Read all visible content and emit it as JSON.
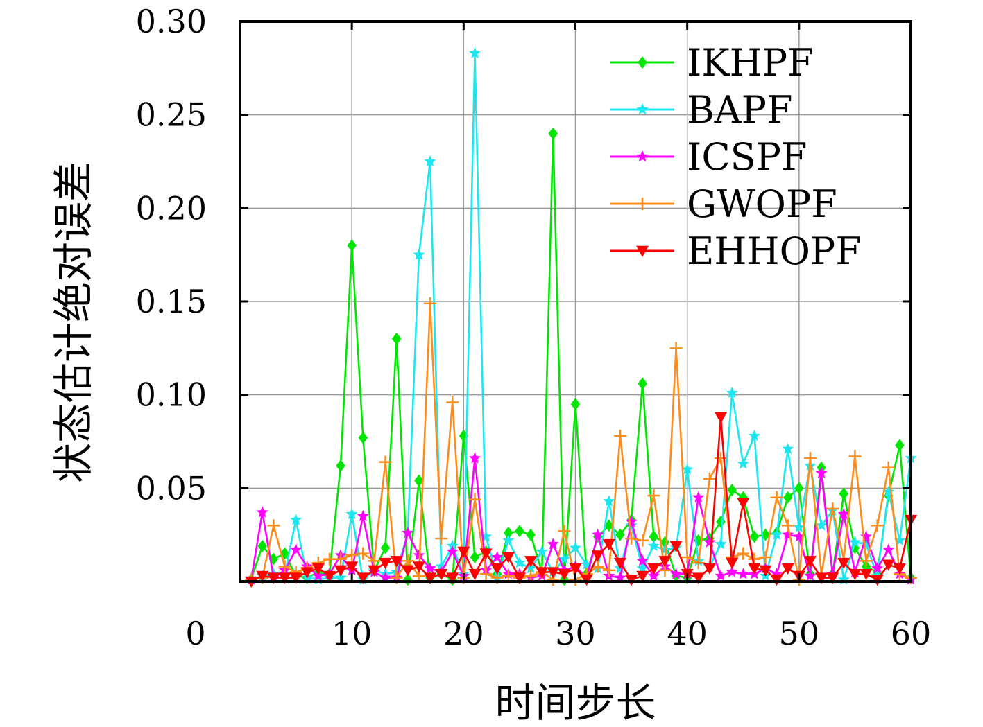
{
  "chart_data": {
    "type": "line",
    "xlabel": "时间步长",
    "ylabel": "状态估计绝对误差",
    "xlim": [
      0,
      60
    ],
    "ylim": [
      0,
      0.3
    ],
    "xticks": [
      "0",
      "10",
      "20",
      "30",
      "40",
      "50",
      "60"
    ],
    "yticks": [
      "0.05",
      "0.10",
      "0.15",
      "0.20",
      "0.25",
      "0.30"
    ],
    "grid": true,
    "legend_position": "top-right",
    "x": [
      1,
      2,
      3,
      4,
      5,
      6,
      7,
      8,
      9,
      10,
      11,
      12,
      13,
      14,
      15,
      16,
      17,
      18,
      19,
      20,
      21,
      22,
      23,
      24,
      25,
      26,
      27,
      28,
      29,
      30,
      31,
      32,
      33,
      34,
      35,
      36,
      37,
      38,
      39,
      40,
      41,
      42,
      43,
      44,
      45,
      46,
      47,
      48,
      49,
      50,
      51,
      52,
      53,
      54,
      55,
      56,
      57,
      58,
      59,
      60
    ],
    "series": [
      {
        "name": "IKHPF",
        "color": "#00e600",
        "marker": "diamond",
        "values": [
          0.001,
          0.019,
          0.012,
          0.015,
          0.003,
          0.002,
          0.005,
          0.004,
          0.062,
          0.18,
          0.077,
          0.006,
          0.018,
          0.13,
          0.001,
          0.054,
          0.002,
          0.004,
          0.001,
          0.078,
          0.013,
          0.016,
          0.004,
          0.026,
          0.027,
          0.025,
          0.005,
          0.24,
          0.001,
          0.095,
          0.004,
          0.024,
          0.03,
          0.025,
          0.033,
          0.106,
          0.024,
          0.021,
          0.003,
          0.002,
          0.022,
          0.023,
          0.032,
          0.049,
          0.045,
          0.024,
          0.025,
          0.026,
          0.045,
          0.05,
          0.004,
          0.061,
          0.004,
          0.047,
          0.018,
          0.008,
          0.005,
          0.046,
          0.073,
          0.002
        ]
      },
      {
        "name": "BAPF",
        "color": "#1ee6f0",
        "marker": "star",
        "values": [
          0.001,
          0.003,
          0.004,
          0.004,
          0.033,
          0.002,
          0.001,
          0.002,
          0.002,
          0.036,
          0.001,
          0.006,
          0.004,
          0.005,
          0.026,
          0.175,
          0.225,
          0.008,
          0.019,
          0.004,
          0.283,
          0.024,
          0.002,
          0.022,
          0.01,
          0.007,
          0.016,
          0.005,
          0.012,
          0.018,
          0.009,
          0.007,
          0.043,
          0.007,
          0.03,
          0.007,
          0.019,
          0.017,
          0.018,
          0.06,
          0.011,
          0.008,
          0.02,
          0.101,
          0.063,
          0.078,
          0.003,
          0.025,
          0.071,
          0.029,
          0.062,
          0.03,
          0.038,
          0.001,
          0.021,
          0.02,
          0.003,
          0.048,
          0.022,
          0.066
        ]
      },
      {
        "name": "ICSPF",
        "color": "#ff00ff",
        "marker": "star",
        "values": [
          0.001,
          0.037,
          0.002,
          0.006,
          0.017,
          0.008,
          0.003,
          0.004,
          0.014,
          0.006,
          0.035,
          0.005,
          0.002,
          0.002,
          0.026,
          0.014,
          0.007,
          0.005,
          0.016,
          0.003,
          0.066,
          0.006,
          0.013,
          0.004,
          0.004,
          0.002,
          0.003,
          0.02,
          0.006,
          0.008,
          0.002,
          0.025,
          0.003,
          0.002,
          0.032,
          0.011,
          0.003,
          0.008,
          0.004,
          0.004,
          0.045,
          0.021,
          0.003,
          0.005,
          0.004,
          0.004,
          0.007,
          0.004,
          0.025,
          0.024,
          0.003,
          0.058,
          0.004,
          0.036,
          0.005,
          0.024,
          0.007,
          0.017,
          0.004,
          0.001
        ]
      },
      {
        "name": "GWOPF",
        "color": "#ff8c1a",
        "marker": "plus",
        "values": [
          0.001,
          0.002,
          0.03,
          0.008,
          0.005,
          0.007,
          0.01,
          0.012,
          0.012,
          0.014,
          0.015,
          0.011,
          0.064,
          0.002,
          0.011,
          0.003,
          0.149,
          0.023,
          0.096,
          0.002,
          0.044,
          0.004,
          0.002,
          0.003,
          0.002,
          0.003,
          0.005,
          0.001,
          0.027,
          0.001,
          0.004,
          0.008,
          0.006,
          0.078,
          0.023,
          0.022,
          0.046,
          0.006,
          0.125,
          0.013,
          0.01,
          0.055,
          0.066,
          0.013,
          0.015,
          0.012,
          0.013,
          0.045,
          0.03,
          0.001,
          0.066,
          0.004,
          0.039,
          0.012,
          0.067,
          0.011,
          0.03,
          0.061,
          0.004,
          0.002
        ]
      },
      {
        "name": "EHHOPF",
        "color": "#ff0000",
        "marker": "triangle-down",
        "values": [
          0.0,
          0.003,
          0.002,
          0.002,
          0.002,
          0.005,
          0.007,
          0.003,
          0.006,
          0.008,
          0.002,
          0.006,
          0.01,
          0.011,
          0.006,
          0.008,
          0.002,
          0.004,
          0.002,
          0.016,
          0.004,
          0.015,
          0.007,
          0.013,
          0.002,
          0.011,
          0.005,
          0.005,
          0.004,
          0.007,
          0.001,
          0.014,
          0.02,
          0.01,
          0.001,
          0.003,
          0.007,
          0.011,
          0.019,
          0.004,
          0.002,
          0.007,
          0.088,
          0.01,
          0.042,
          0.007,
          0.006,
          0.001,
          0.007,
          0.003,
          0.011,
          0.002,
          0.002,
          0.01,
          0.004,
          0.004,
          0.001,
          0.009,
          0.007,
          0.033
        ]
      }
    ]
  }
}
